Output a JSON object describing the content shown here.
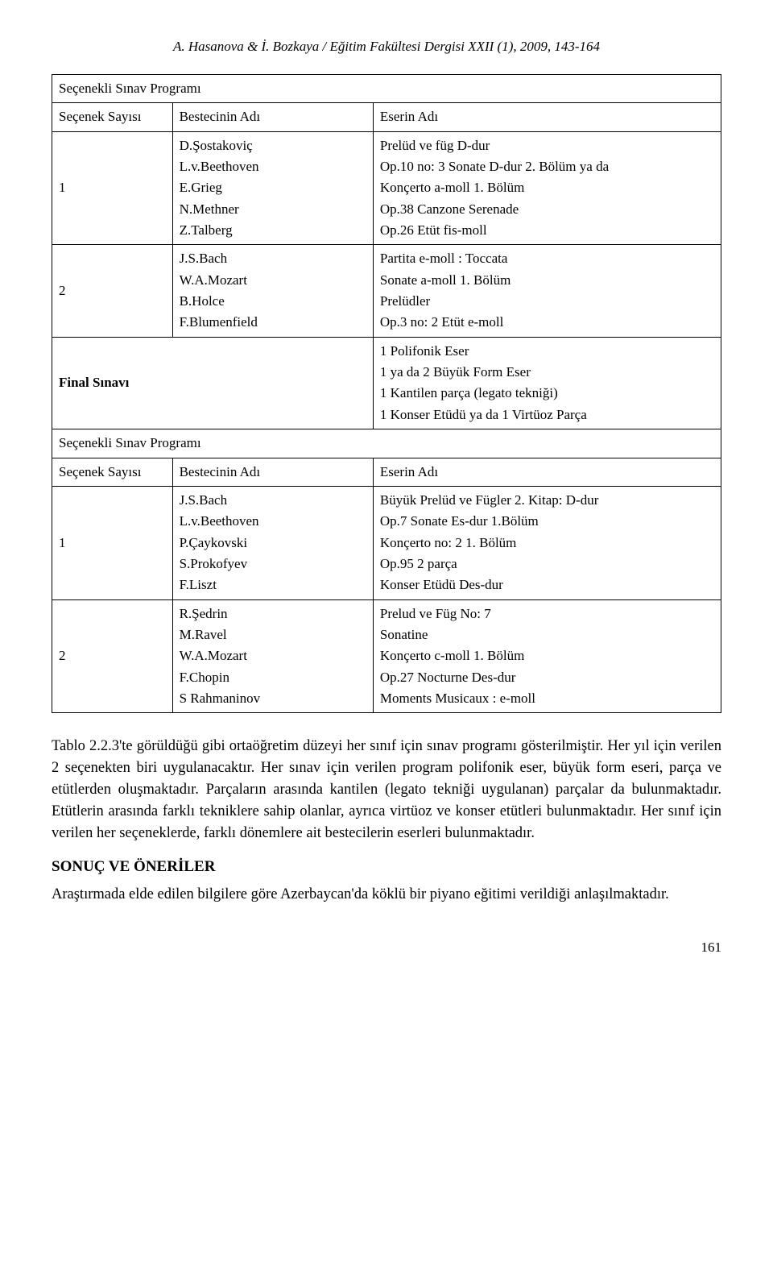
{
  "header": "A. Hasanova & İ. Bozkaya / Eğitim Fakültesi Dergisi XXII (1), 2009, 143-164",
  "tbl": {
    "section1": "Seçenekli Sınav Programı",
    "hdr1_c1": "Seçenek Sayısı",
    "hdr1_c2": "Bestecinin Adı",
    "hdr1_c3": "Eserin Adı",
    "r1_c1": "1",
    "r1_c2": [
      "D.Şostakoviç",
      "L.v.Beethoven",
      "E.Grieg",
      "N.Methner",
      "Z.Talberg"
    ],
    "r1_c3": [
      "Prelüd ve füg D-dur",
      "Op.10 no: 3 Sonate D-dur 2. Bölüm ya da",
      "Konçerto a-moll 1. Bölüm",
      "Op.38 Canzone Serenade",
      "Op.26 Etüt fis-moll"
    ],
    "r2_c1": "2",
    "r2_c2": [
      "J.S.Bach",
      "W.A.Mozart",
      "B.Holce",
      "F.Blumenfield"
    ],
    "r2_c3": [
      "Partita e-moll : Toccata",
      "Sonate a-moll 1. Bölüm",
      "Prelüdler",
      "Op.3 no: 2 Etüt e-moll"
    ],
    "final_c12": "Final Sınavı",
    "final_c3": [
      "1 Polifonik Eser",
      "1 ya da 2 Büyük Form Eser",
      "1 Kantilen parça (legato tekniği)",
      "1 Konser Etüdü ya da 1 Virtüoz Parça"
    ],
    "section2": "Seçenekli Sınav Programı",
    "hdr2_c1": "Seçenek Sayısı",
    "hdr2_c2": "Bestecinin Adı",
    "hdr2_c3": "Eserin Adı",
    "r3_c1": "1",
    "r3_c2": [
      "J.S.Bach",
      "L.v.Beethoven",
      "P.Çaykovski",
      "S.Prokofyev",
      "F.Liszt"
    ],
    "r3_c3": [
      "Büyük Prelüd ve Fügler 2. Kitap: D-dur",
      "Op.7 Sonate Es-dur 1.Bölüm",
      "Konçerto no: 2 1. Bölüm",
      "Op.95 2 parça",
      "Konser Etüdü Des-dur"
    ],
    "r4_c1": "2",
    "r4_c2": [
      "R.Şedrin",
      "M.Ravel",
      "W.A.Mozart",
      "F.Chopin",
      "S Rahmaninov"
    ],
    "r4_c3": [
      "Prelud ve Füg No: 7",
      "Sonatine",
      "Konçerto c-moll 1. Bölüm",
      "Op.27 Nocturne Des-dur",
      "Moments Musicaux : e-moll"
    ]
  },
  "para1": "Tablo 2.2.3'te görüldüğü gibi ortaöğretim düzeyi her sınıf için sınav programı gösterilmiştir. Her yıl için verilen 2 seçenekten biri uygulanacaktır. Her sınav için verilen program polifonik eser, büyük form eseri, parça ve etütlerden oluşmaktadır. Parçaların arasında kantilen (legato tekniği uygulanan) parçalar da bulunmaktadır. Etütlerin arasında farklı tekniklere sahip olanlar, ayrıca virtüoz ve konser etütleri bulunmaktadır. Her sınıf için verilen her seçeneklerde, farklı dönemlere ait bestecilerin eserleri bulunmaktadır.",
  "heading2": "SONUÇ VE ÖNERİLER",
  "para2": "Araştırmada elde edilen bilgilere göre Azerbaycan'da köklü bir piyano eğitimi verildiği anlaşılmaktadır.",
  "page_num": "161"
}
